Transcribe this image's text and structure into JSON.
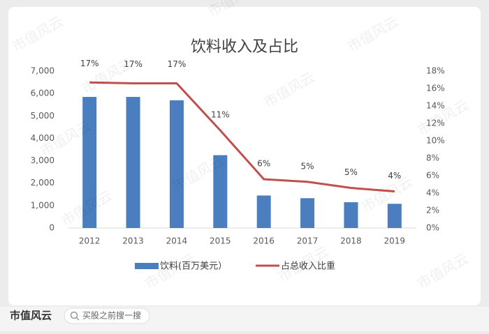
{
  "chart_data": {
    "type": "bar",
    "title": "饮料收入及占比",
    "categories": [
      "2012",
      "2013",
      "2014",
      "2015",
      "2016",
      "2017",
      "2018",
      "2019"
    ],
    "series": [
      {
        "name": "饮料(百万美元）",
        "type": "bar",
        "color": "#4a7ebf",
        "values": [
          5850,
          5850,
          5700,
          3250,
          1450,
          1330,
          1150,
          1080
        ]
      },
      {
        "name": "占总收入比重",
        "type": "line",
        "axis": "y2",
        "color": "#c0504d",
        "values": [
          16.7,
          16.6,
          16.6,
          11.2,
          5.6,
          5.3,
          4.6,
          4.2
        ],
        "value_labels": [
          "17%",
          "17%",
          "17%",
          "11%",
          "6%",
          "5%",
          "5%",
          "4%"
        ]
      }
    ],
    "ylim": [
      0,
      7000
    ],
    "yticks": [
      0,
      {
        "value": 1000,
        "label": "1,000"
      },
      {
        "value": 2000,
        "label": "2,000"
      },
      {
        "value": 3000,
        "label": "3,000"
      },
      {
        "value": 4000,
        "label": "4,000"
      },
      {
        "value": 5000,
        "label": "5,000"
      },
      {
        "value": 6000,
        "label": "6,000"
      },
      {
        "value": 7000,
        "label": "7,000"
      }
    ],
    "y2lim": [
      0,
      18
    ],
    "y2ticks": [
      {
        "value": 0,
        "label": "0%"
      },
      {
        "value": 2,
        "label": "2%"
      },
      {
        "value": 4,
        "label": "4%"
      },
      {
        "value": 6,
        "label": "6%"
      },
      {
        "value": 8,
        "label": "8%"
      },
      {
        "value": 10,
        "label": "10%"
      },
      {
        "value": 12,
        "label": "12%"
      },
      {
        "value": 14,
        "label": "14%"
      },
      {
        "value": 16,
        "label": "16%"
      },
      {
        "value": 18,
        "label": "18%"
      }
    ],
    "legend": "bottom"
  },
  "watermark": "市值风云",
  "footer": {
    "logo": "市值风云",
    "search": "买股之前搜一搜"
  }
}
